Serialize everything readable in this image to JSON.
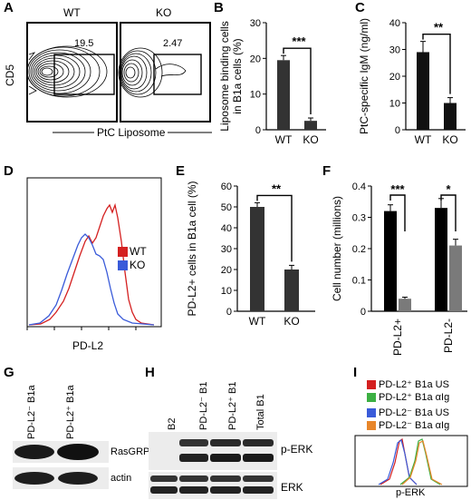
{
  "panels": {
    "A": "A",
    "B": "B",
    "C": "C",
    "D": "D",
    "E": "E",
    "F": "F",
    "G": "G",
    "H": "H",
    "I": "I"
  },
  "panelA": {
    "wt": "WT",
    "ko": "KO",
    "wt_value": "19.5",
    "ko_value": "2.47",
    "ylabel": "CD5",
    "xlabel": "PtC Liposome"
  },
  "panelD": {
    "legend": [
      "WT",
      "KO"
    ],
    "xlabel": "PD-L2"
  },
  "panelG": {
    "lanes": [
      "PD-L2⁻ B1a",
      "PD-L2⁺ B1a"
    ],
    "rows": [
      "RasGRP1",
      "actin"
    ]
  },
  "panelH": {
    "lanes": [
      "B2",
      "PD-L2⁻ B1",
      "PD-L2⁺ B1",
      "Total B1"
    ],
    "rows": [
      "p-ERK",
      "ERK"
    ]
  },
  "panelI": {
    "legend": [
      "PD-L2⁺ B1a US",
      "PD-L2⁺ B1a αIg",
      "PD-L2⁻ B1a US",
      "PD-L2⁻ B1a αIg"
    ],
    "xlabel": "p-ERK"
  },
  "colors": {
    "wt": "#d42020",
    "ko": "#3a5bd9",
    "bar_dark": "#000000",
    "bar_grey": "#7a7a7a",
    "green": "#3cb043",
    "orange": "#e8862a"
  },
  "chart_data": [
    {
      "panel": "B",
      "type": "bar",
      "ylabel": "Liposome binding cells in B1a cells (%)",
      "categories": [
        "WT",
        "KO"
      ],
      "values": [
        19.5,
        2.5
      ],
      "errors": [
        1.3,
        0.8
      ],
      "ylim": [
        0,
        30
      ],
      "yticks": [
        0,
        10,
        20,
        30
      ],
      "significance": "***"
    },
    {
      "panel": "C",
      "type": "bar",
      "ylabel": "PtC-specific IgM (ng/ml)",
      "categories": [
        "WT",
        "KO"
      ],
      "values": [
        29,
        10
      ],
      "errors": [
        4,
        2
      ],
      "ylim": [
        0,
        40
      ],
      "yticks": [
        0,
        10,
        20,
        30,
        40
      ],
      "significance": "**"
    },
    {
      "panel": "E",
      "type": "bar",
      "ylabel": "PD-L2+ cells in B1a cell (%)",
      "categories": [
        "WT",
        "KO"
      ],
      "values": [
        50,
        20
      ],
      "errors": [
        2,
        2
      ],
      "ylim": [
        0,
        60
      ],
      "yticks": [
        0,
        10,
        20,
        30,
        40,
        50,
        60
      ],
      "significance": "**"
    },
    {
      "panel": "F",
      "type": "bar",
      "ylabel": "Cell number (millions)",
      "categories": [
        "PD-L2+",
        "PD-L2-"
      ],
      "series": [
        {
          "values": [
            0.32,
            0.33
          ],
          "errors": [
            0.02,
            0.03
          ]
        },
        {
          "values": [
            0.04,
            0.21
          ],
          "errors": [
            0.005,
            0.02
          ]
        }
      ],
      "ylim": [
        0,
        0.4
      ],
      "yticks": [
        0,
        0.1,
        0.2,
        0.3,
        0.4
      ],
      "significance": [
        "***",
        "*"
      ]
    }
  ]
}
